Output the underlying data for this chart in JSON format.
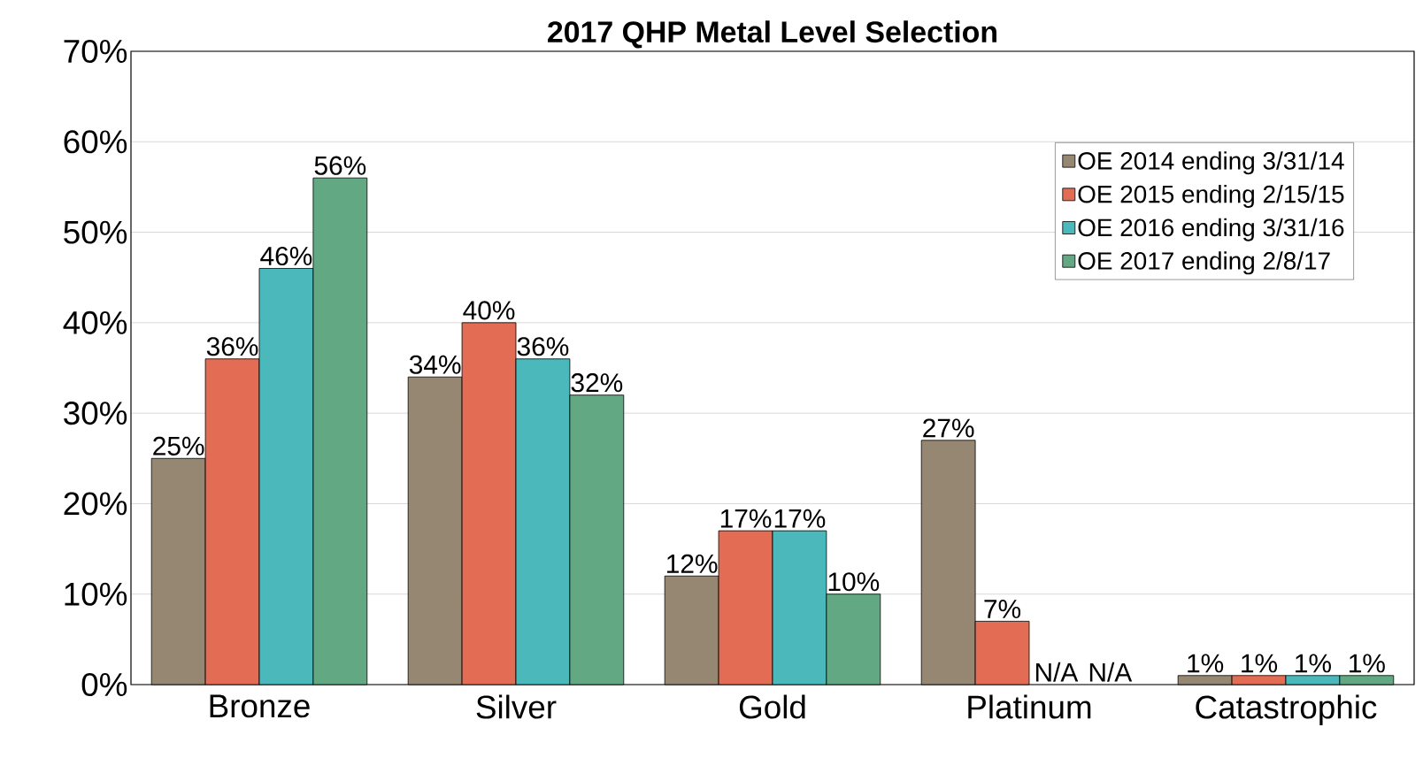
{
  "chart_data": {
    "type": "bar",
    "title": "2017 QHP Metal Level Selection",
    "categories": [
      "Bronze",
      "Silver",
      "Gold",
      "Platinum",
      "Catastrophic"
    ],
    "series": [
      {
        "name": "OE 2014 ending 3/31/14",
        "color": "#968772",
        "values": [
          25,
          34,
          12,
          27,
          1
        ],
        "value_labels": [
          "25%",
          "34%",
          "12%",
          "27%",
          "1%"
        ]
      },
      {
        "name": "OE 2015 ending 2/15/15",
        "color": "#e36c55",
        "values": [
          36,
          40,
          17,
          7,
          1
        ],
        "value_labels": [
          "36%",
          "40%",
          "17%",
          "7%",
          "1%"
        ]
      },
      {
        "name": "OE 2016 ending 3/31/16",
        "color": "#4bb8bb",
        "values": [
          46,
          36,
          17,
          null,
          1
        ],
        "value_labels": [
          "46%",
          "36%",
          "17%",
          "N/A",
          "1%"
        ]
      },
      {
        "name": "OE 2017 ending 2/8/17",
        "color": "#62a883",
        "values": [
          56,
          32,
          10,
          null,
          1
        ],
        "value_labels": [
          "56%",
          "32%",
          "10%",
          "N/A",
          "1%"
        ]
      }
    ],
    "ylim": [
      0,
      70
    ],
    "yticks": [
      {
        "value": 0,
        "label": "0%"
      },
      {
        "value": 10,
        "label": "10%"
      },
      {
        "value": 20,
        "label": "20%"
      },
      {
        "value": 30,
        "label": "30%"
      },
      {
        "value": 40,
        "label": "40%"
      },
      {
        "value": 50,
        "label": "50%"
      },
      {
        "value": 60,
        "label": "60%"
      },
      {
        "value": 70,
        "label": "70%"
      }
    ],
    "grid": "y",
    "legend": "top right"
  }
}
